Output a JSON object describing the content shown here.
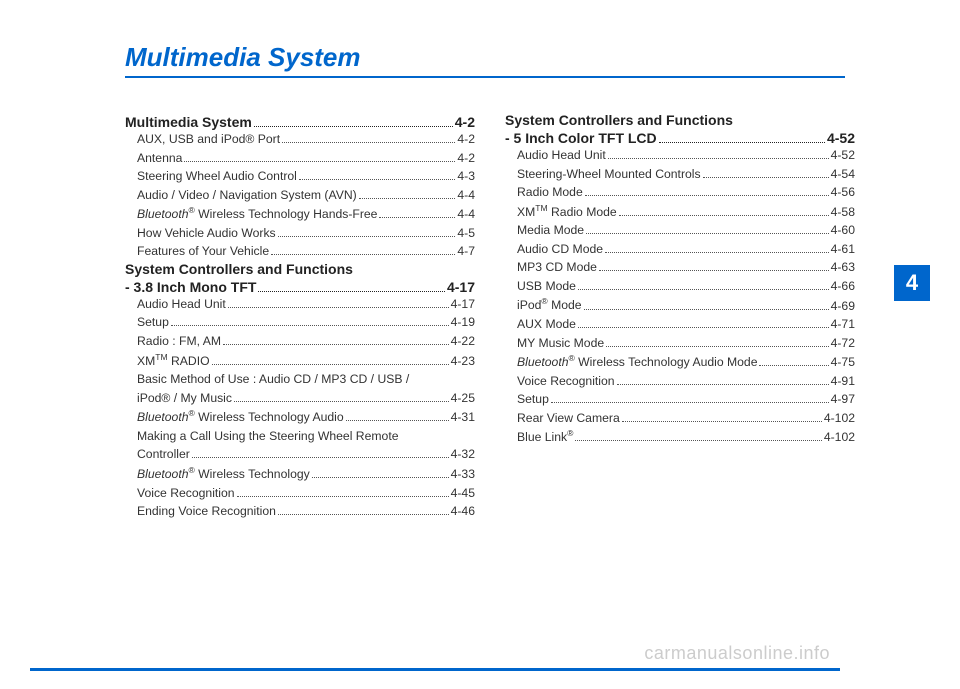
{
  "page_title": "Multimedia System",
  "chapter_number": "4",
  "watermark": "carmanualsonline.info",
  "colors": {
    "accent": "#0066cc",
    "text": "#222",
    "subtext": "#333",
    "watermark": "#ccc"
  },
  "left_column": {
    "sections": [
      {
        "header": {
          "label": "Multimedia System",
          "page": "4-2"
        },
        "items": [
          {
            "label": "AUX, USB and iPod® Port ",
            "page": "4-2"
          },
          {
            "label": "Antenna ",
            "page": "4-2"
          },
          {
            "label": "Steering Wheel Audio Control",
            "page": "4-3"
          },
          {
            "label": "Audio / Video / Navigation System (AVN)",
            "page": "4-4"
          },
          {
            "label_html": "<span class=\"italic\">Bluetooth</span><span class=\"sup\">®</span> Wireless Technology Hands-Free",
            "page": "4-4"
          },
          {
            "label": "How Vehicle Audio Works ",
            "page": "4-5"
          },
          {
            "label": "Features of Your Vehicle",
            "page": "4-7"
          }
        ]
      },
      {
        "subheader": "System Controllers and Functions",
        "header": {
          "label": "- 3.8 Inch Mono TFT ",
          "page": "4-17"
        },
        "items": [
          {
            "label": "Audio Head Unit ",
            "page": "4-17"
          },
          {
            "label": "Setup ",
            "page": "4-19"
          },
          {
            "label": "Radio : FM, AM ",
            "page": "4-22"
          },
          {
            "label_html": "XM<span class=\"sup\">TM</span> RADIO",
            "page": "4-23"
          },
          {
            "label": "Basic Method of Use : Audio CD / MP3 CD / USB /",
            "wrap": true
          },
          {
            "label": "iPod® / My Music ",
            "page": "4-25",
            "nowrap_indent": true
          },
          {
            "label_html": "<span class=\"italic\">Bluetooth</span><span class=\"sup\">®</span> Wireless Technology Audio ",
            "page": "4-31"
          },
          {
            "label": "Making a Call Using the Steering Wheel Remote",
            "wrap": true
          },
          {
            "label": "Controller",
            "page": "4-32",
            "nowrap_indent": true
          },
          {
            "label_html": "<span class=\"italic\">Bluetooth</span><span class=\"sup\">®</span> Wireless Technology ",
            "page": "4-33"
          },
          {
            "label": "Voice Recognition ",
            "page": "4-45"
          },
          {
            "label": "Ending Voice Recognition ",
            "page": "4-46"
          }
        ]
      }
    ]
  },
  "right_column": {
    "sections": [
      {
        "subheader": "System Controllers and Functions",
        "header": {
          "label": "- 5 Inch Color TFT LCD ",
          "page": "4-52"
        },
        "items": [
          {
            "label": "Audio Head Unit ",
            "page": "4-52"
          },
          {
            "label": "Steering-Wheel Mounted Controls ",
            "page": "4-54"
          },
          {
            "label": "Radio Mode",
            "page": "4-56"
          },
          {
            "label_html": "XM<span class=\"sup\">TM</span> Radio Mode ",
            "page": "4-58"
          },
          {
            "label": "Media Mode",
            "page": "4-60"
          },
          {
            "label": "Audio CD Mode",
            "page": "4-61"
          },
          {
            "label": "MP3 CD Mode ",
            "page": "4-63"
          },
          {
            "label": "USB Mode ",
            "page": "4-66"
          },
          {
            "label_html": "iPod<span class=\"sup\">®</span> Mode ",
            "page": "4-69"
          },
          {
            "label": "AUX Mode",
            "page": "4-71"
          },
          {
            "label": "MY Music Mode ",
            "page": "4-72"
          },
          {
            "label_html": "<span class=\"italic\">Bluetooth</span><span class=\"sup\">®</span> Wireless Technology Audio Mode ",
            "page": "4-75"
          },
          {
            "label": "Voice Recognition ",
            "page": "4-91"
          },
          {
            "label": "Setup ",
            "page": "4-97"
          },
          {
            "label": "Rear View Camera ",
            "page": "4-102"
          },
          {
            "label_html": "Blue Link<span class=\"sup\">®</span>",
            "page": "4-102"
          }
        ]
      }
    ]
  }
}
